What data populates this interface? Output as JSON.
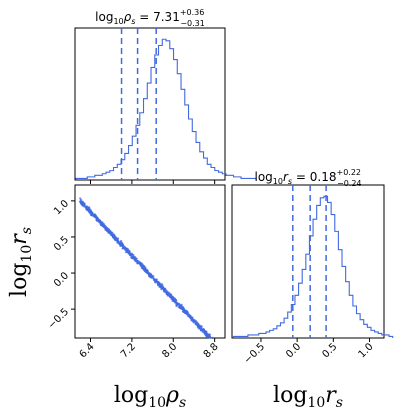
{
  "chart_data": {
    "type": "corner",
    "color": "#4169e1",
    "parameters": [
      "log10 rho_s",
      "log10 r_s"
    ],
    "panels": [
      {
        "kind": "histogram",
        "parameter": "log10 rho_s",
        "title_prefix": "log",
        "title_sub": "10",
        "title_var": "ρ",
        "title_var_sub": "s",
        "title_eq": " = ",
        "title_value": "7.31",
        "title_plus": "+0.36",
        "title_minus": "−0.31",
        "xlim": [
          6.1,
          9.0
        ],
        "bins_start": 6.12,
        "bin_width": 0.0725,
        "counts": [
          1,
          1,
          1,
          2,
          2,
          3,
          3,
          4,
          5,
          6,
          8,
          10,
          13,
          17,
          22,
          28,
          35,
          43,
          52,
          62,
          72,
          80,
          86,
          90,
          89,
          84,
          77,
          68,
          58,
          48,
          39,
          31,
          24,
          18,
          14,
          10,
          8,
          6,
          5,
          4,
          3,
          3,
          2,
          2,
          1,
          1,
          1,
          1
        ],
        "quantiles": [
          7.0,
          7.31,
          7.67
        ],
        "xticks": [
          6.4,
          7.2,
          8.0,
          8.8
        ],
        "show_tick_labels": false
      },
      {
        "kind": "scatter",
        "xparam": "log10 rho_s",
        "yparam": "log10 r_s",
        "xlim": [
          6.1,
          9.0
        ],
        "ylim": [
          -0.9,
          1.22
        ],
        "xticks": [
          6.4,
          7.2,
          8.0,
          8.8
        ],
        "xtick_labels": [
          "6.4",
          "7.2",
          "8.0",
          "8.8"
        ],
        "yticks": [
          -0.5,
          0.0,
          0.5,
          1.0
        ],
        "ytick_labels": [
          "−0.5",
          "0.0",
          "0.5",
          "1.0"
        ],
        "relation": {
          "slope": -0.755,
          "intercept": 5.68
        },
        "xlabel": "log10 rho_s",
        "ylabel": "log10 r_s"
      },
      {
        "kind": "histogram",
        "parameter": "log10 r_s",
        "title_prefix": "log",
        "title_sub": "10",
        "title_var": "r",
        "title_var_sub": "s",
        "title_eq": " = ",
        "title_value": "0.18",
        "title_plus": "+0.22",
        "title_minus": "−0.24",
        "xlim": [
          -0.9,
          1.2
        ],
        "bins_start": -0.88,
        "bin_width": 0.05,
        "counts": [
          1,
          1,
          1,
          1,
          2,
          2,
          2,
          3,
          3,
          4,
          5,
          6,
          8,
          10,
          13,
          17,
          22,
          28,
          36,
          45,
          55,
          67,
          78,
          87,
          92,
          93,
          89,
          81,
          70,
          58,
          47,
          37,
          28,
          21,
          16,
          12,
          9,
          7,
          5,
          4,
          3,
          2,
          2,
          1
        ],
        "quantiles": [
          -0.06,
          0.18,
          0.4
        ],
        "xticks": [
          -0.5,
          0.0,
          0.5,
          1.0
        ],
        "xtick_labels": [
          "−0.5",
          "0.0",
          "0.5",
          "1.0"
        ],
        "xlabel": "log10 r_s"
      }
    ]
  }
}
